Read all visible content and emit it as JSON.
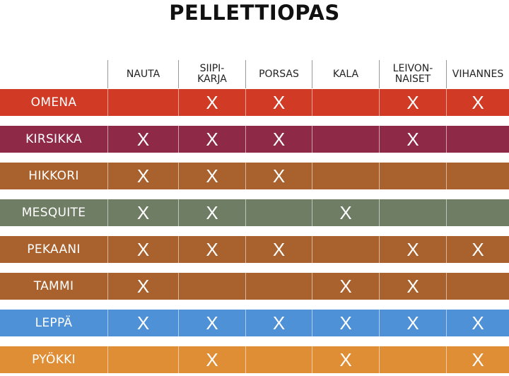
{
  "title": "PELLETTIOPAS",
  "columns": [
    "NAUTA",
    "SIIPI-\nKARJA",
    "PORSAS",
    "KALA",
    "LEIVON-\nNAISET",
    "VIHANNES"
  ],
  "mark": "X",
  "rows": [
    {
      "name": "OMENA",
      "color": "#d13a24",
      "marks": [
        0,
        1,
        1,
        0,
        1,
        1
      ]
    },
    {
      "name": "KIRSIKKA",
      "color": "#8e2a48",
      "marks": [
        1,
        1,
        1,
        0,
        1,
        0
      ]
    },
    {
      "name": "HIKKORI",
      "color": "#a9612e",
      "marks": [
        1,
        1,
        1,
        0,
        0,
        0
      ]
    },
    {
      "name": "MESQUITE",
      "color": "#6f7d64",
      "marks": [
        1,
        1,
        0,
        1,
        0,
        0
      ]
    },
    {
      "name": "PEKAANI",
      "color": "#a9612e",
      "marks": [
        1,
        1,
        1,
        0,
        1,
        1
      ]
    },
    {
      "name": "TAMMI",
      "color": "#a9612e",
      "marks": [
        1,
        0,
        0,
        1,
        1,
        0
      ]
    },
    {
      "name": "LEPPÄ",
      "color": "#4e91d6",
      "marks": [
        1,
        1,
        1,
        1,
        1,
        1
      ]
    },
    {
      "name": "PYÖKKI",
      "color": "#e08e35",
      "marks": [
        0,
        1,
        0,
        1,
        0,
        1
      ]
    }
  ]
}
